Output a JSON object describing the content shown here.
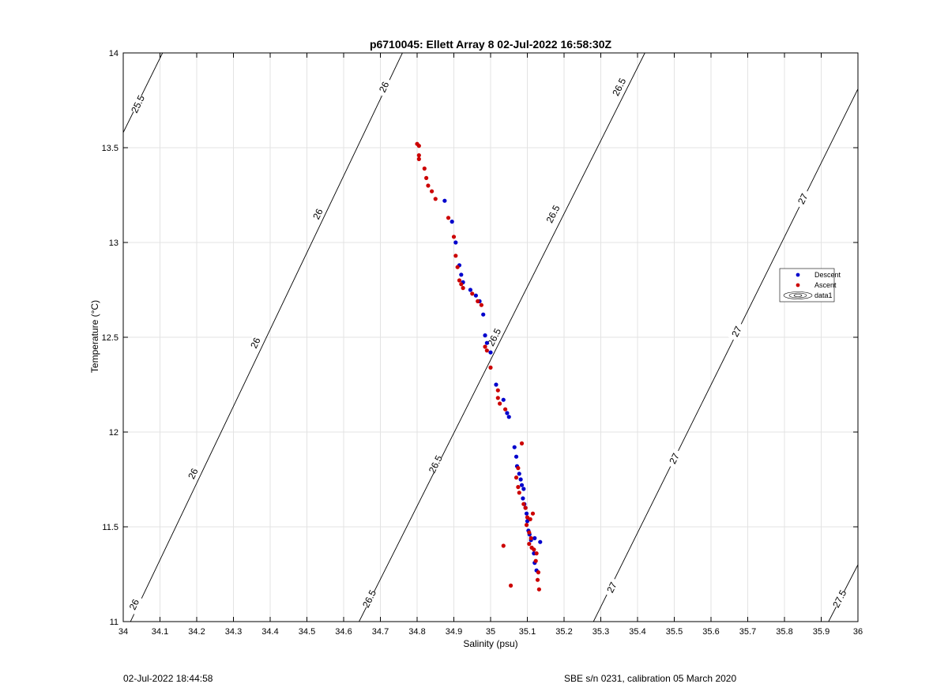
{
  "chart_data": {
    "type": "scatter",
    "title": "p6710045: Ellett Array 8 02-Jul-2022 16:58:30Z",
    "xlabel": "Salinity (psu)",
    "ylabel": "Temperature (°C)",
    "xlim": [
      34,
      36
    ],
    "ylim": [
      11,
      14
    ],
    "xticks": [
      "34",
      "34.1",
      "34.2",
      "34.3",
      "34.4",
      "34.5",
      "34.6",
      "34.7",
      "34.8",
      "34.9",
      "35",
      "35.1",
      "35.2",
      "35.3",
      "35.4",
      "35.5",
      "35.6",
      "35.7",
      "35.8",
      "35.9",
      "36"
    ],
    "yticks": [
      "11",
      "11.5",
      "12",
      "12.5",
      "13",
      "13.5",
      "14"
    ],
    "grid": true,
    "legend_position": "right",
    "legend": [
      "Descent",
      "Ascent",
      "data1"
    ],
    "series": [
      {
        "name": "Descent",
        "color": "#0000cc",
        "points": [
          [
            34.875,
            13.22
          ],
          [
            34.895,
            13.11
          ],
          [
            34.905,
            13.0
          ],
          [
            34.915,
            12.88
          ],
          [
            34.92,
            12.83
          ],
          [
            34.925,
            12.79
          ],
          [
            34.945,
            12.75
          ],
          [
            34.96,
            12.72
          ],
          [
            34.97,
            12.69
          ],
          [
            34.98,
            12.62
          ],
          [
            34.985,
            12.51
          ],
          [
            34.99,
            12.47
          ],
          [
            35.0,
            12.42
          ],
          [
            35.015,
            12.25
          ],
          [
            35.035,
            12.17
          ],
          [
            35.045,
            12.1
          ],
          [
            35.05,
            12.08
          ],
          [
            35.065,
            11.92
          ],
          [
            35.07,
            11.87
          ],
          [
            35.072,
            11.82
          ],
          [
            35.078,
            11.78
          ],
          [
            35.082,
            11.75
          ],
          [
            35.085,
            11.72
          ],
          [
            35.09,
            11.7
          ],
          [
            35.088,
            11.65
          ],
          [
            35.092,
            11.62
          ],
          [
            35.095,
            11.6
          ],
          [
            35.098,
            11.57
          ],
          [
            35.1,
            11.53
          ],
          [
            35.103,
            11.48
          ],
          [
            35.106,
            11.46
          ],
          [
            35.11,
            11.43
          ],
          [
            35.12,
            11.44
          ],
          [
            35.135,
            11.42
          ],
          [
            35.118,
            11.36
          ],
          [
            35.12,
            11.31
          ],
          [
            35.125,
            11.27
          ]
        ]
      },
      {
        "name": "Ascent",
        "color": "#cc0000",
        "points": [
          [
            34.8,
            13.52
          ],
          [
            34.805,
            13.51
          ],
          [
            34.805,
            13.46
          ],
          [
            34.805,
            13.44
          ],
          [
            34.82,
            13.39
          ],
          [
            34.825,
            13.34
          ],
          [
            34.83,
            13.3
          ],
          [
            34.84,
            13.27
          ],
          [
            34.85,
            13.23
          ],
          [
            34.885,
            13.13
          ],
          [
            34.9,
            13.03
          ],
          [
            34.905,
            12.93
          ],
          [
            34.91,
            12.87
          ],
          [
            34.915,
            12.8
          ],
          [
            34.92,
            12.78
          ],
          [
            34.925,
            12.76
          ],
          [
            34.95,
            12.73
          ],
          [
            34.965,
            12.69
          ],
          [
            34.975,
            12.67
          ],
          [
            34.985,
            12.45
          ],
          [
            34.99,
            12.43
          ],
          [
            35.0,
            12.34
          ],
          [
            35.02,
            12.22
          ],
          [
            35.02,
            12.18
          ],
          [
            35.025,
            12.15
          ],
          [
            35.04,
            12.12
          ],
          [
            35.085,
            11.94
          ],
          [
            35.075,
            11.81
          ],
          [
            35.07,
            11.76
          ],
          [
            35.075,
            11.71
          ],
          [
            35.078,
            11.68
          ],
          [
            35.09,
            11.62
          ],
          [
            35.095,
            11.6
          ],
          [
            35.1,
            11.55
          ],
          [
            35.108,
            11.54
          ],
          [
            35.115,
            11.57
          ],
          [
            35.098,
            11.51
          ],
          [
            35.105,
            11.47
          ],
          [
            35.11,
            11.44
          ],
          [
            35.105,
            11.41
          ],
          [
            35.112,
            11.39
          ],
          [
            35.118,
            11.38
          ],
          [
            35.125,
            11.36
          ],
          [
            35.123,
            11.32
          ],
          [
            35.13,
            11.26
          ],
          [
            35.128,
            11.22
          ],
          [
            35.132,
            11.17
          ],
          [
            35.035,
            11.4
          ],
          [
            35.055,
            11.19
          ]
        ]
      }
    ],
    "contour_labels": [
      "25.5",
      "26",
      "26.5",
      "27",
      "27.5"
    ],
    "contours": [
      {
        "level": "25.5",
        "points": [
          [
            34.0,
            13.58
          ],
          [
            34.107,
            14.0
          ]
        ],
        "labels": [
          [
            34.04,
            13.73
          ]
        ]
      },
      {
        "level": "26",
        "points": [
          [
            34.0,
            10.92
          ],
          [
            34.76,
            14.0
          ]
        ],
        "labels": [
          [
            34.03,
            11.09
          ],
          [
            34.19,
            11.78
          ],
          [
            34.36,
            12.47
          ],
          [
            34.53,
            13.15
          ],
          [
            34.71,
            13.82
          ]
        ]
      },
      {
        "level": "26.5",
        "points": [
          [
            34.642,
            11.0
          ],
          [
            35.42,
            14.0
          ]
        ],
        "labels": [
          [
            34.67,
            11.12
          ],
          [
            34.85,
            11.83
          ],
          [
            35.01,
            12.5
          ],
          [
            35.17,
            13.15
          ],
          [
            35.35,
            13.82
          ]
        ]
      },
      {
        "level": "27",
        "points": [
          [
            35.28,
            11.0
          ],
          [
            36.0,
            13.81
          ]
        ],
        "labels": [
          [
            35.33,
            11.18
          ],
          [
            35.5,
            11.86
          ],
          [
            35.67,
            12.53
          ],
          [
            35.85,
            13.23
          ]
        ]
      },
      {
        "level": "27.5",
        "points": [
          [
            35.92,
            11.0
          ],
          [
            36.0,
            11.3
          ]
        ],
        "labels": [
          [
            35.95,
            11.12
          ]
        ]
      }
    ]
  },
  "footer": {
    "timestamp": "02-Jul-2022 18:44:58",
    "calibration": "SBE s/n 0231, calibration 05 March 2020"
  }
}
